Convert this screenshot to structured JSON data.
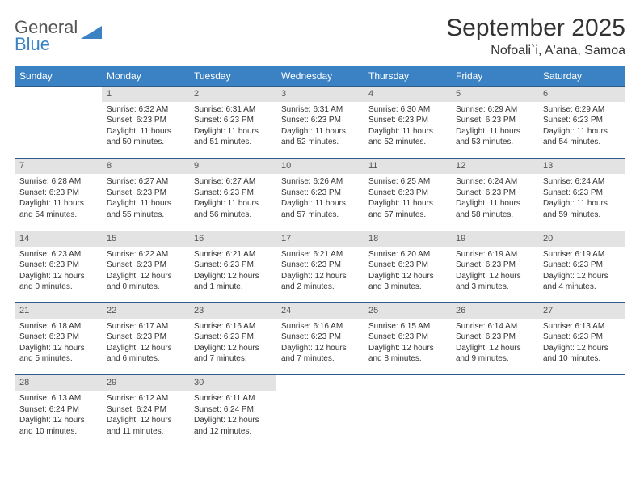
{
  "logo": {
    "line1": "General",
    "line2": "Blue"
  },
  "title": "September 2025",
  "location": "Nofoali`i, A'ana, Samoa",
  "header_bg": "#3b82c4",
  "header_fg": "#ffffff",
  "daynum_bg": "#e3e3e3",
  "rule_color": "#2f5a8a",
  "weekdays": [
    "Sunday",
    "Monday",
    "Tuesday",
    "Wednesday",
    "Thursday",
    "Friday",
    "Saturday"
  ],
  "weeks": [
    {
      "nums": [
        "",
        "1",
        "2",
        "3",
        "4",
        "5",
        "6"
      ],
      "cells": [
        null,
        {
          "sunrise": "Sunrise: 6:32 AM",
          "sunset": "Sunset: 6:23 PM",
          "day1": "Daylight: 11 hours",
          "day2": "and 50 minutes."
        },
        {
          "sunrise": "Sunrise: 6:31 AM",
          "sunset": "Sunset: 6:23 PM",
          "day1": "Daylight: 11 hours",
          "day2": "and 51 minutes."
        },
        {
          "sunrise": "Sunrise: 6:31 AM",
          "sunset": "Sunset: 6:23 PM",
          "day1": "Daylight: 11 hours",
          "day2": "and 52 minutes."
        },
        {
          "sunrise": "Sunrise: 6:30 AM",
          "sunset": "Sunset: 6:23 PM",
          "day1": "Daylight: 11 hours",
          "day2": "and 52 minutes."
        },
        {
          "sunrise": "Sunrise: 6:29 AM",
          "sunset": "Sunset: 6:23 PM",
          "day1": "Daylight: 11 hours",
          "day2": "and 53 minutes."
        },
        {
          "sunrise": "Sunrise: 6:29 AM",
          "sunset": "Sunset: 6:23 PM",
          "day1": "Daylight: 11 hours",
          "day2": "and 54 minutes."
        }
      ]
    },
    {
      "nums": [
        "7",
        "8",
        "9",
        "10",
        "11",
        "12",
        "13"
      ],
      "cells": [
        {
          "sunrise": "Sunrise: 6:28 AM",
          "sunset": "Sunset: 6:23 PM",
          "day1": "Daylight: 11 hours",
          "day2": "and 54 minutes."
        },
        {
          "sunrise": "Sunrise: 6:27 AM",
          "sunset": "Sunset: 6:23 PM",
          "day1": "Daylight: 11 hours",
          "day2": "and 55 minutes."
        },
        {
          "sunrise": "Sunrise: 6:27 AM",
          "sunset": "Sunset: 6:23 PM",
          "day1": "Daylight: 11 hours",
          "day2": "and 56 minutes."
        },
        {
          "sunrise": "Sunrise: 6:26 AM",
          "sunset": "Sunset: 6:23 PM",
          "day1": "Daylight: 11 hours",
          "day2": "and 57 minutes."
        },
        {
          "sunrise": "Sunrise: 6:25 AM",
          "sunset": "Sunset: 6:23 PM",
          "day1": "Daylight: 11 hours",
          "day2": "and 57 minutes."
        },
        {
          "sunrise": "Sunrise: 6:24 AM",
          "sunset": "Sunset: 6:23 PM",
          "day1": "Daylight: 11 hours",
          "day2": "and 58 minutes."
        },
        {
          "sunrise": "Sunrise: 6:24 AM",
          "sunset": "Sunset: 6:23 PM",
          "day1": "Daylight: 11 hours",
          "day2": "and 59 minutes."
        }
      ]
    },
    {
      "nums": [
        "14",
        "15",
        "16",
        "17",
        "18",
        "19",
        "20"
      ],
      "cells": [
        {
          "sunrise": "Sunrise: 6:23 AM",
          "sunset": "Sunset: 6:23 PM",
          "day1": "Daylight: 12 hours",
          "day2": "and 0 minutes."
        },
        {
          "sunrise": "Sunrise: 6:22 AM",
          "sunset": "Sunset: 6:23 PM",
          "day1": "Daylight: 12 hours",
          "day2": "and 0 minutes."
        },
        {
          "sunrise": "Sunrise: 6:21 AM",
          "sunset": "Sunset: 6:23 PM",
          "day1": "Daylight: 12 hours",
          "day2": "and 1 minute."
        },
        {
          "sunrise": "Sunrise: 6:21 AM",
          "sunset": "Sunset: 6:23 PM",
          "day1": "Daylight: 12 hours",
          "day2": "and 2 minutes."
        },
        {
          "sunrise": "Sunrise: 6:20 AM",
          "sunset": "Sunset: 6:23 PM",
          "day1": "Daylight: 12 hours",
          "day2": "and 3 minutes."
        },
        {
          "sunrise": "Sunrise: 6:19 AM",
          "sunset": "Sunset: 6:23 PM",
          "day1": "Daylight: 12 hours",
          "day2": "and 3 minutes."
        },
        {
          "sunrise": "Sunrise: 6:19 AM",
          "sunset": "Sunset: 6:23 PM",
          "day1": "Daylight: 12 hours",
          "day2": "and 4 minutes."
        }
      ]
    },
    {
      "nums": [
        "21",
        "22",
        "23",
        "24",
        "25",
        "26",
        "27"
      ],
      "cells": [
        {
          "sunrise": "Sunrise: 6:18 AM",
          "sunset": "Sunset: 6:23 PM",
          "day1": "Daylight: 12 hours",
          "day2": "and 5 minutes."
        },
        {
          "sunrise": "Sunrise: 6:17 AM",
          "sunset": "Sunset: 6:23 PM",
          "day1": "Daylight: 12 hours",
          "day2": "and 6 minutes."
        },
        {
          "sunrise": "Sunrise: 6:16 AM",
          "sunset": "Sunset: 6:23 PM",
          "day1": "Daylight: 12 hours",
          "day2": "and 7 minutes."
        },
        {
          "sunrise": "Sunrise: 6:16 AM",
          "sunset": "Sunset: 6:23 PM",
          "day1": "Daylight: 12 hours",
          "day2": "and 7 minutes."
        },
        {
          "sunrise": "Sunrise: 6:15 AM",
          "sunset": "Sunset: 6:23 PM",
          "day1": "Daylight: 12 hours",
          "day2": "and 8 minutes."
        },
        {
          "sunrise": "Sunrise: 6:14 AM",
          "sunset": "Sunset: 6:23 PM",
          "day1": "Daylight: 12 hours",
          "day2": "and 9 minutes."
        },
        {
          "sunrise": "Sunrise: 6:13 AM",
          "sunset": "Sunset: 6:23 PM",
          "day1": "Daylight: 12 hours",
          "day2": "and 10 minutes."
        }
      ]
    },
    {
      "nums": [
        "28",
        "29",
        "30",
        "",
        "",
        "",
        ""
      ],
      "cells": [
        {
          "sunrise": "Sunrise: 6:13 AM",
          "sunset": "Sunset: 6:24 PM",
          "day1": "Daylight: 12 hours",
          "day2": "and 10 minutes."
        },
        {
          "sunrise": "Sunrise: 6:12 AM",
          "sunset": "Sunset: 6:24 PM",
          "day1": "Daylight: 12 hours",
          "day2": "and 11 minutes."
        },
        {
          "sunrise": "Sunrise: 6:11 AM",
          "sunset": "Sunset: 6:24 PM",
          "day1": "Daylight: 12 hours",
          "day2": "and 12 minutes."
        },
        null,
        null,
        null,
        null
      ]
    }
  ]
}
